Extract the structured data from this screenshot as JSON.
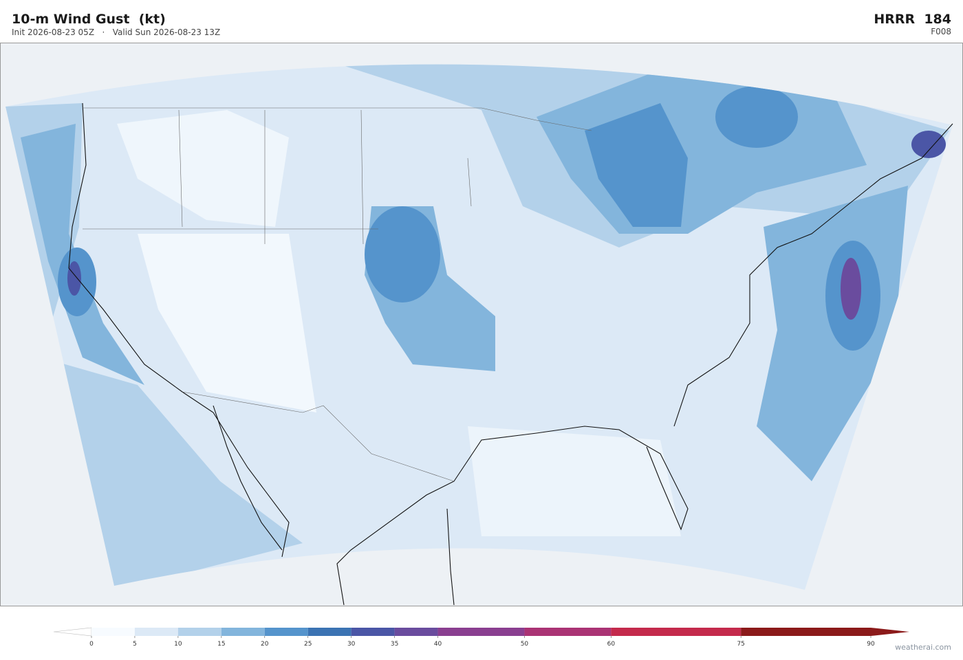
{
  "header": {
    "title": "10-m Wind Gust  (kt)",
    "subtitle": "Init 2026-08-23 05Z   ·   Valid Sun 2026-08-23 13Z",
    "model": "HRRR  184",
    "forecast_hour": "F008"
  },
  "colorbar": {
    "ticks": [
      0,
      5,
      10,
      15,
      20,
      25,
      30,
      35,
      40,
      50,
      60,
      75,
      90
    ],
    "colors": [
      "#f7fbff",
      "#dce9f6",
      "#b3d1ea",
      "#83b5dc",
      "#5594cc",
      "#3b73b3",
      "#4b56a6",
      "#6a4c9e",
      "#8a3f90",
      "#aa3374",
      "#c42a4c",
      "#8b1a1a"
    ],
    "under_color": "#ffffff",
    "over_color": "#8b1a1a"
  },
  "watermark": "weatherai.com"
}
